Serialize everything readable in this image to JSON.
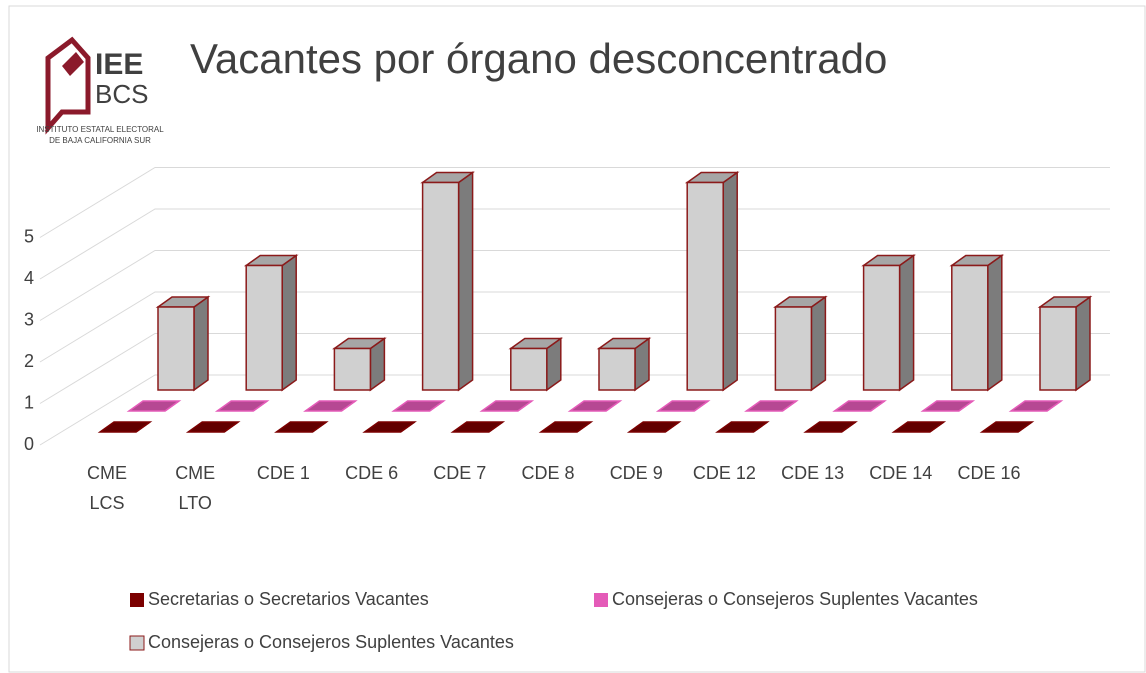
{
  "logo": {
    "name": "IEE",
    "sub": "BCS",
    "line1": "INSTITUTO ESTATAL ELECTORAL",
    "line2": "DE BAJA CALIFORNIA SUR"
  },
  "chart_data": {
    "type": "bar3d",
    "title": "Vacantes por órgano desconcentrado",
    "categories": [
      "CME LCS",
      "CME LTO",
      "CDE 1",
      "CDE 6",
      "CDE 7",
      "CDE 8",
      "CDE 9",
      "CDE 12",
      "CDE 13",
      "CDE 14",
      "CDE 16"
    ],
    "series": [
      {
        "name": "Secretarias o Secretarios Vacantes",
        "color": "#7b0000",
        "values": [
          0,
          0,
          0,
          0,
          0,
          0,
          0,
          0,
          0,
          0,
          0
        ]
      },
      {
        "name": "Consejeras o Consejeros Suplentes Vacantes",
        "color": "#e45bb8",
        "values": [
          0,
          0,
          0,
          0,
          0,
          0,
          0,
          0,
          0,
          0,
          0
        ]
      },
      {
        "name": "Consejeras o Consejeros Suplentes Vacantes",
        "color": "#d0d0d0",
        "values": [
          2,
          3,
          1,
          5,
          1,
          1,
          5,
          2,
          3,
          3,
          2
        ]
      }
    ],
    "ylim": [
      0,
      5
    ],
    "yticks": [
      0,
      1,
      2,
      3,
      4,
      5
    ],
    "grid": true,
    "legend": "bottom"
  }
}
